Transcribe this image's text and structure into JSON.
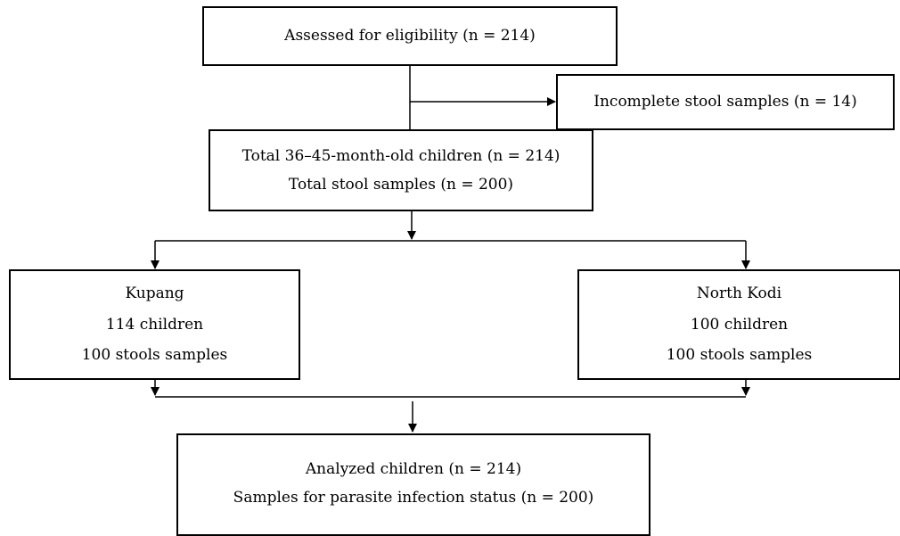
{
  "flowchart": {
    "assessed": [
      "Assessed for eligibility (n = 214)"
    ],
    "incomplete": [
      "Incomplete stool samples (n = 14)"
    ],
    "total": [
      "Total 36–45-month-old children (n = 214)",
      "Total stool samples (n = 200)"
    ],
    "kupang": [
      "Kupang",
      "114 children",
      "100 stools samples"
    ],
    "north_kodi": [
      "North Kodi",
      "100 children",
      "100 stools samples"
    ],
    "analyzed": [
      "Analyzed children (n = 214)",
      "Samples for parasite infection status (n = 200)"
    ]
  }
}
